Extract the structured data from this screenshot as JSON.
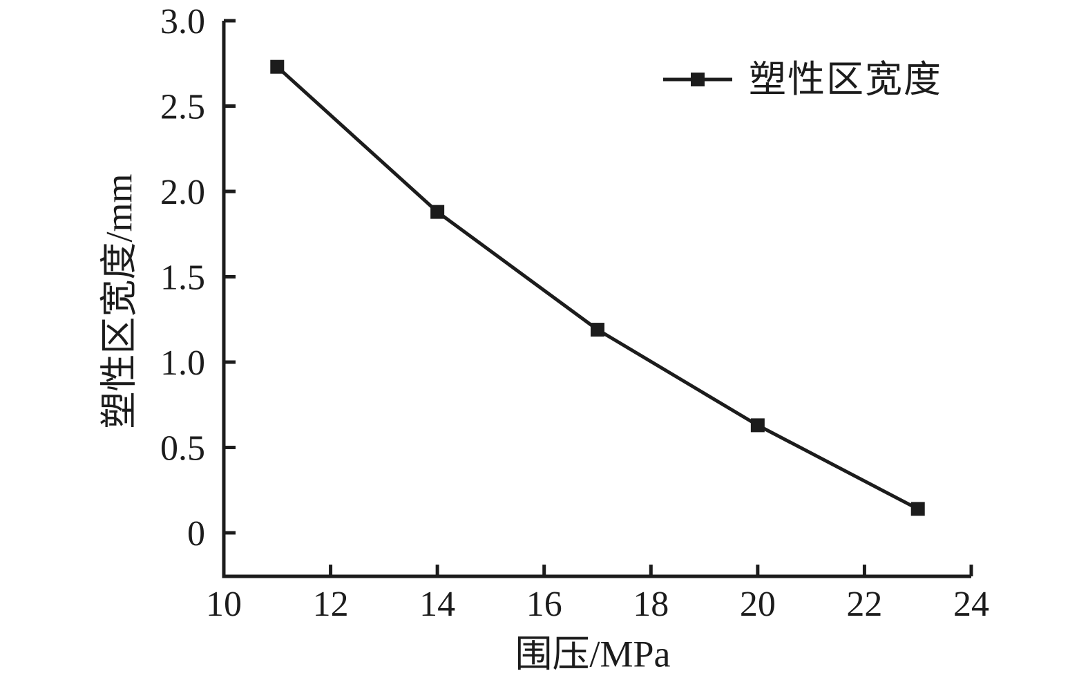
{
  "figure": {
    "background_color": "#ffffff",
    "ink_color": "#1c1c1c"
  },
  "chart_data": {
    "type": "line",
    "title": "",
    "xlabel": "围压/MPa",
    "ylabel": "塑性区宽度/mm",
    "x": [
      11,
      14,
      17,
      20,
      23
    ],
    "series": [
      {
        "name": "塑性区宽度",
        "values": [
          2.73,
          1.88,
          1.19,
          0.63,
          0.14
        ],
        "marker": "filled-square",
        "line_style": "solid",
        "color": "#1c1c1c"
      }
    ],
    "x_axis": {
      "tick_labels": [
        "10",
        "12",
        "14",
        "16",
        "18",
        "20",
        "22",
        "24"
      ],
      "tick_values": [
        10,
        12,
        14,
        16,
        18,
        20,
        22,
        24
      ],
      "range": [
        10,
        24
      ]
    },
    "y_axis": {
      "tick_labels": [
        "0",
        "0.5",
        "1.0",
        "1.5",
        "2.0",
        "2.5",
        "3.0"
      ],
      "tick_values": [
        0,
        0.5,
        1,
        1.5,
        2,
        2.5,
        3
      ],
      "range_shown": [
        -0.26,
        3.0
      ]
    },
    "legend": {
      "label": "塑性区宽度",
      "position": "top-right",
      "marker": "filled-square"
    },
    "grid": false
  }
}
